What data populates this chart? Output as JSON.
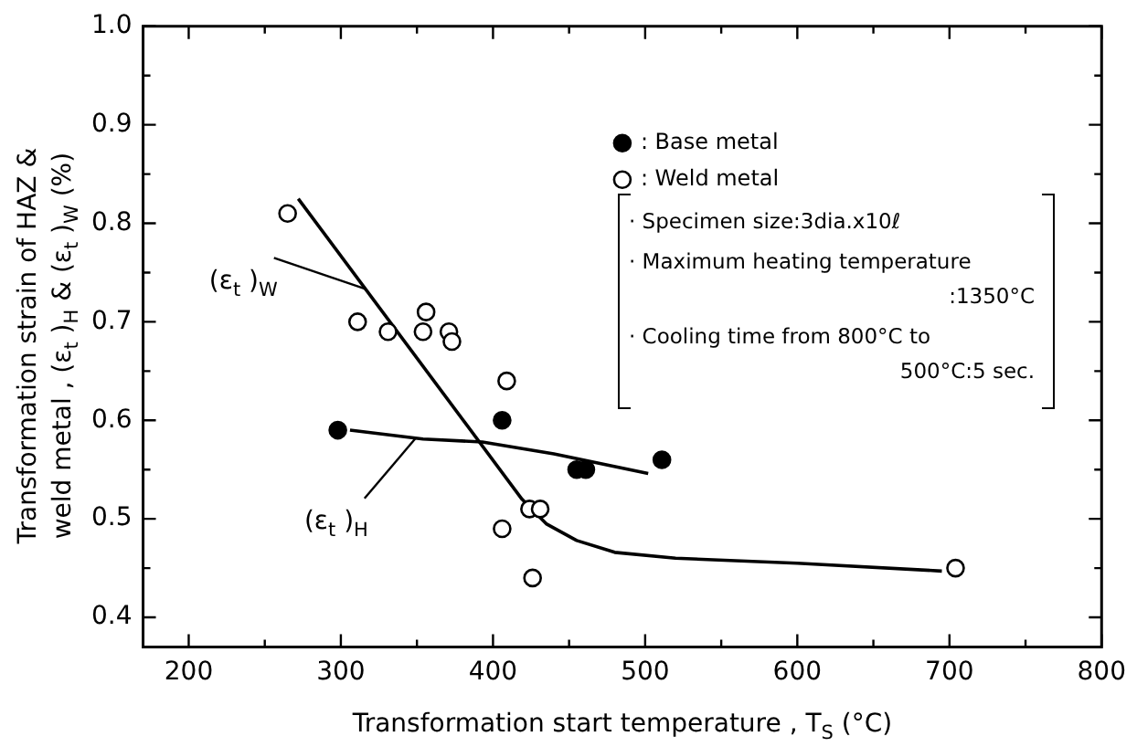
{
  "chart_data": {
    "type": "scatter",
    "xlabel": "Transformation start temperature , T$_{S}$ (°C)",
    "ylabel": "Transformation strain of HAZ &\nweld metal , (ε$_{t}$ )$_{H}$ & (ε$_{t}$ )$_{W}$ (%)",
    "xlim": [
      170,
      800
    ],
    "ylim": [
      0.37,
      1.0
    ],
    "xticks": [
      200,
      {
        "value": 250,
        "label": null
      },
      300,
      {
        "value": 350,
        "label": null
      },
      400,
      {
        "value": 450,
        "label": null
      },
      500,
      {
        "value": 550,
        "label": null
      },
      600,
      {
        "value": 650,
        "label": null
      },
      700,
      {
        "value": 750,
        "label": null
      },
      800
    ],
    "yticks": [
      0.4,
      {
        "value": 0.45,
        "label": null
      },
      0.5,
      {
        "value": 0.55,
        "label": null
      },
      0.6,
      {
        "value": 0.65,
        "label": null
      },
      0.7,
      {
        "value": 0.75,
        "label": null
      },
      0.8,
      {
        "value": 0.85,
        "label": null
      },
      0.9,
      {
        "value": 0.95,
        "label": null
      },
      {
        "value": 1.0,
        "label": "1.0"
      }
    ],
    "grid": false,
    "legend": "top right",
    "marker": "circle",
    "series": [
      {
        "name": ": Base metal",
        "color": "#000000",
        "x": [
          298,
          406,
          455,
          461,
          511
        ],
        "values": [
          0.59,
          0.6,
          0.55,
          0.55,
          0.56
        ]
      },
      {
        "name": ": Weld metal",
        "color": "#ffffff",
        "x": [
          265,
          311,
          331,
          354,
          356,
          371,
          373,
          409,
          406,
          424,
          431,
          426,
          704
        ],
        "values": [
          0.81,
          0.7,
          0.69,
          0.69,
          0.71,
          0.69,
          0.68,
          0.64,
          0.49,
          0.51,
          0.51,
          0.44,
          0.45
        ]
      },
      {
        "name": "(ε$_{t}$ )$_{W}$",
        "type": "line",
        "color": "#000000",
        "marker": "none",
        "line_style": "solid",
        "x": [
          272,
          419,
          435,
          455,
          480,
          520,
          600,
          695
        ],
        "values": [
          0.825,
          0.52,
          0.495,
          0.478,
          0.466,
          0.46,
          0.455,
          0.447
        ]
      },
      {
        "name": "(ε$_{t}$ )$_{H}$",
        "type": "line",
        "color": "#000000",
        "marker": "none",
        "line_style": "solid",
        "x": [
          306,
          354,
          393,
          440,
          502
        ],
        "values": [
          0.59,
          0.581,
          0.578,
          0.566,
          0.546
        ]
      }
    ],
    "annotations": [
      "· Specimen size:3dia.x10ℓ",
      "· Maximum heating temperature\n:1350°C",
      "· Cooling time from 800°C to\n500°C:5 sec."
    ]
  }
}
